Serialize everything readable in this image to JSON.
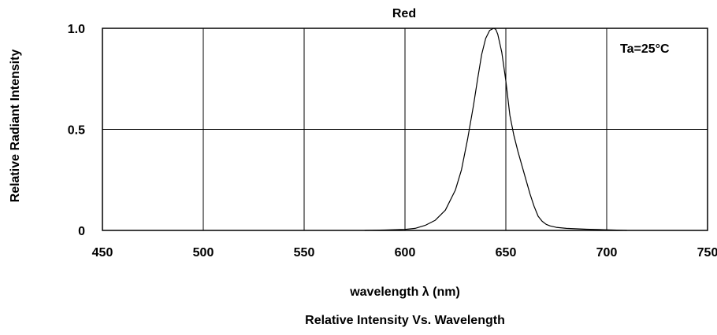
{
  "chart_data": {
    "type": "line",
    "title": "Red",
    "caption": "Relative Intensity Vs. Wavelength",
    "xlabel": "wavelength λ (nm)",
    "ylabel": "Relative Radiant Intensity",
    "annotation": "Ta=25°C",
    "xlim": [
      450,
      750
    ],
    "ylim": [
      0,
      1
    ],
    "x_ticks": [
      450,
      500,
      550,
      600,
      650,
      700,
      750
    ],
    "x_tick_labels": [
      "450",
      "500",
      "550",
      "600",
      "650",
      "700",
      "750"
    ],
    "y_ticks": [
      0,
      0.5,
      1
    ],
    "y_tick_labels": [
      "0",
      "0.5",
      "1.0"
    ],
    "grid": true,
    "series": [
      {
        "color": "#000000",
        "x": [
          580,
          590,
          600,
          605,
          610,
          615,
          620,
          625,
          628,
          631,
          634,
          636,
          638,
          640,
          642,
          644,
          645,
          646,
          648,
          650,
          652,
          654,
          656,
          658,
          660,
          662,
          664,
          666,
          668,
          670,
          672,
          675,
          680,
          690,
          700,
          710
        ],
        "y": [
          0.0,
          0.002,
          0.005,
          0.01,
          0.025,
          0.05,
          0.1,
          0.2,
          0.3,
          0.45,
          0.62,
          0.75,
          0.87,
          0.95,
          0.99,
          1.0,
          0.995,
          0.97,
          0.88,
          0.74,
          0.57,
          0.47,
          0.39,
          0.32,
          0.25,
          0.18,
          0.12,
          0.07,
          0.045,
          0.03,
          0.022,
          0.015,
          0.01,
          0.006,
          0.003,
          0.0
        ]
      }
    ]
  }
}
